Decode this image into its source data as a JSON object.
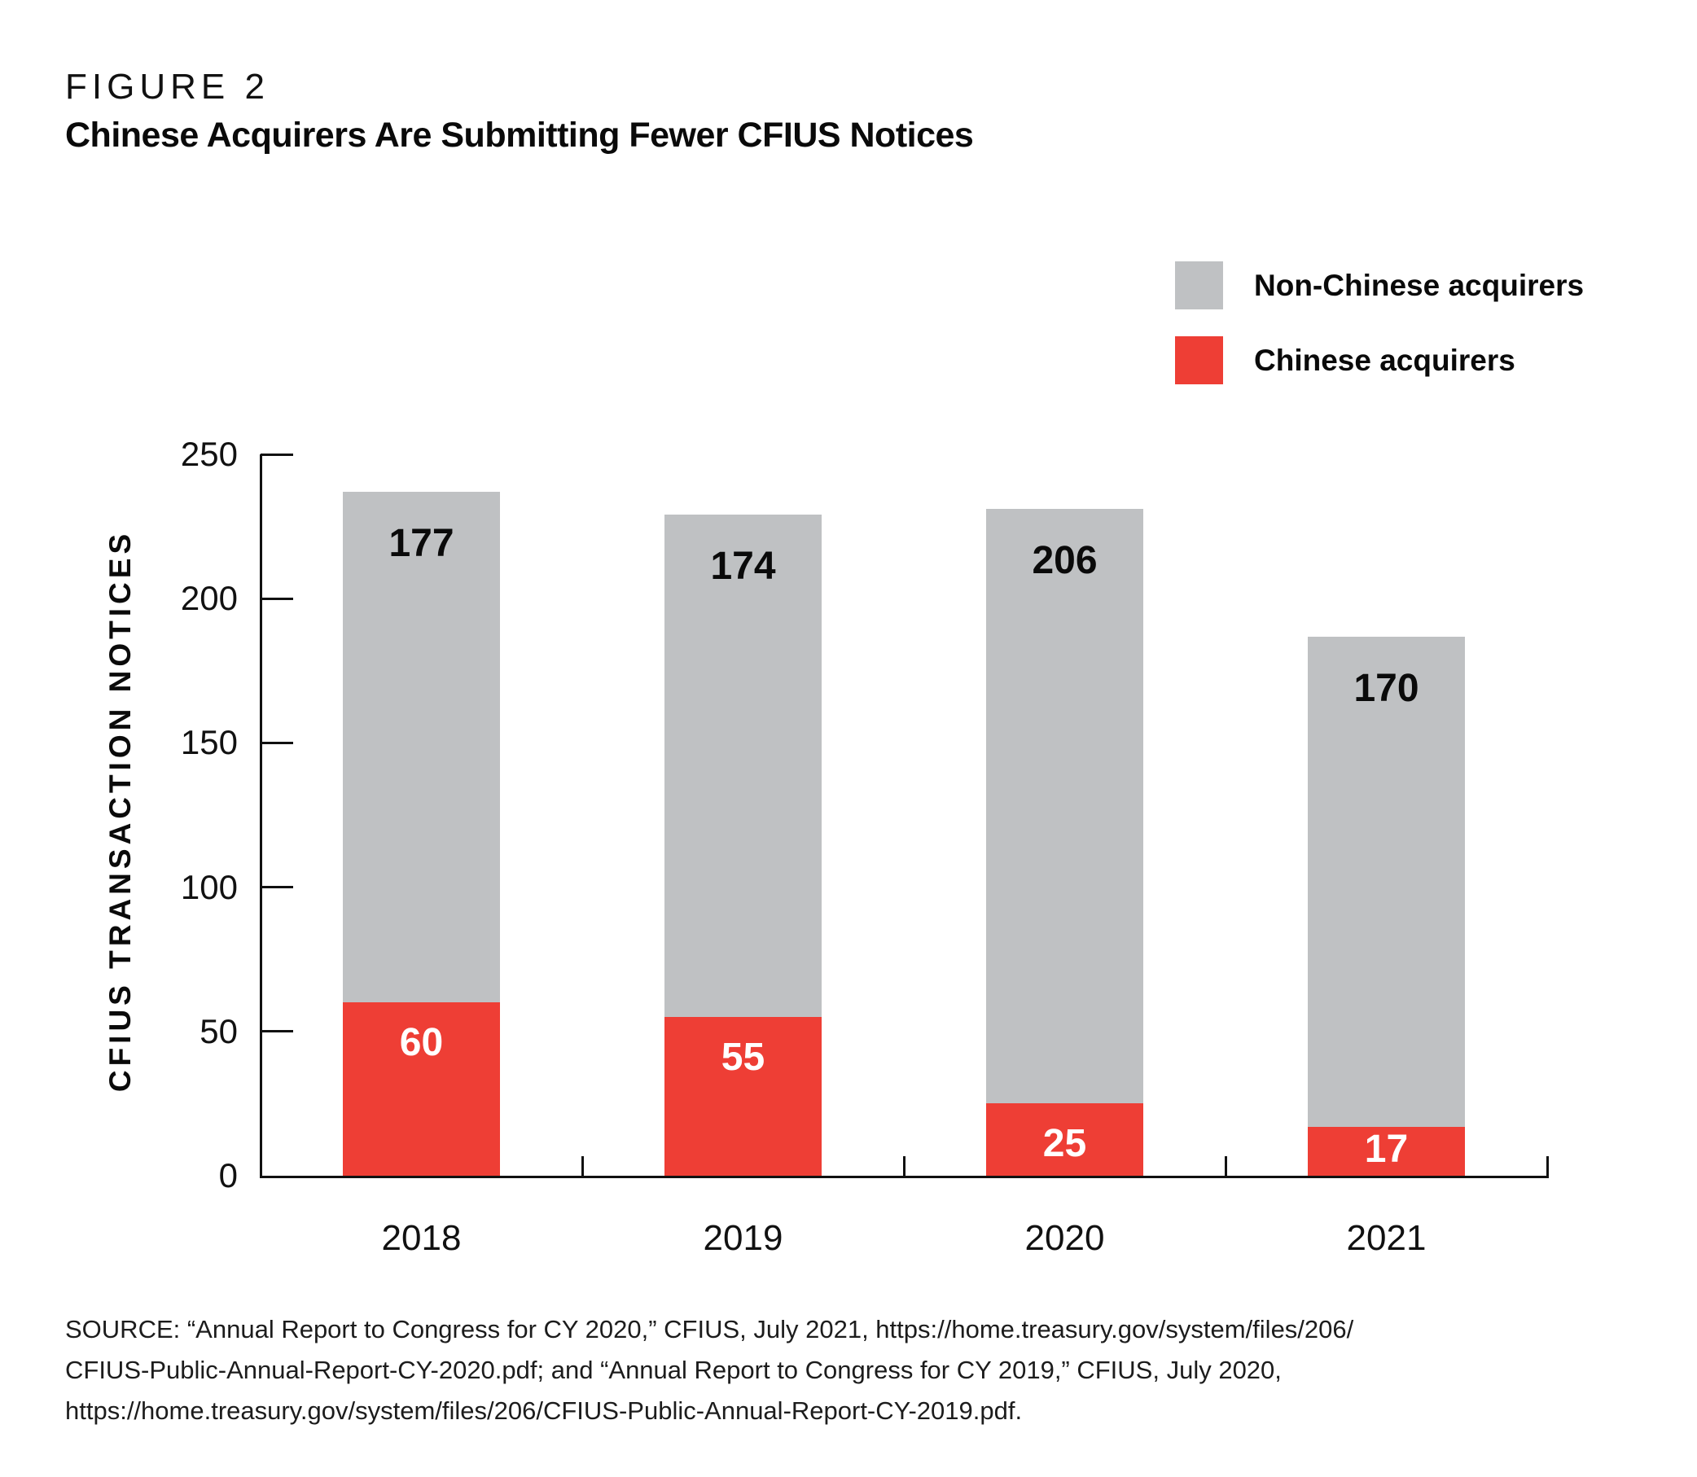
{
  "header": {
    "figure_label": "FIGURE 2",
    "title": "Chinese Acquirers Are Submitting Fewer CFIUS Notices"
  },
  "legend": {
    "items": [
      {
        "label": "Non-Chinese acquirers",
        "color": "#bfc1c3"
      },
      {
        "label": "Chinese acquirers",
        "color": "#ee3e35"
      }
    ]
  },
  "chart_data": {
    "type": "bar",
    "stacked": true,
    "title": "Chinese Acquirers Are Submitting Fewer CFIUS Notices",
    "categories": [
      "2018",
      "2019",
      "2020",
      "2021"
    ],
    "series": [
      {
        "name": "Chinese acquirers",
        "color": "#ee3e35",
        "label_color": "#ffffff",
        "values": [
          60,
          55,
          25,
          17
        ]
      },
      {
        "name": "Non-Chinese acquirers",
        "color": "#bfc1c3",
        "label_color": "#0a0a0a",
        "values": [
          177,
          174,
          206,
          170
        ]
      }
    ],
    "totals": [
      237,
      229,
      231,
      187
    ],
    "xlabel": "",
    "ylabel": "CFIUS TRANSACTION NOTICES",
    "ylim": [
      0,
      250
    ],
    "yticks": [
      0,
      50,
      100,
      150,
      200,
      250
    ],
    "grid": false,
    "legend_position": "top-right"
  },
  "source": {
    "lines": [
      "SOURCE: “Annual Report to Congress for CY 2020,” CFIUS, July 2021, https://home.treasury.gov/system/files/206/",
      "CFIUS-Public-Annual-Report-CY-2020.pdf; and “Annual Report to Congress for CY 2019,” CFIUS, July 2020,",
      "https://home.treasury.gov/system/files/206/CFIUS-Public-Annual-Report-CY-2019.pdf."
    ]
  }
}
